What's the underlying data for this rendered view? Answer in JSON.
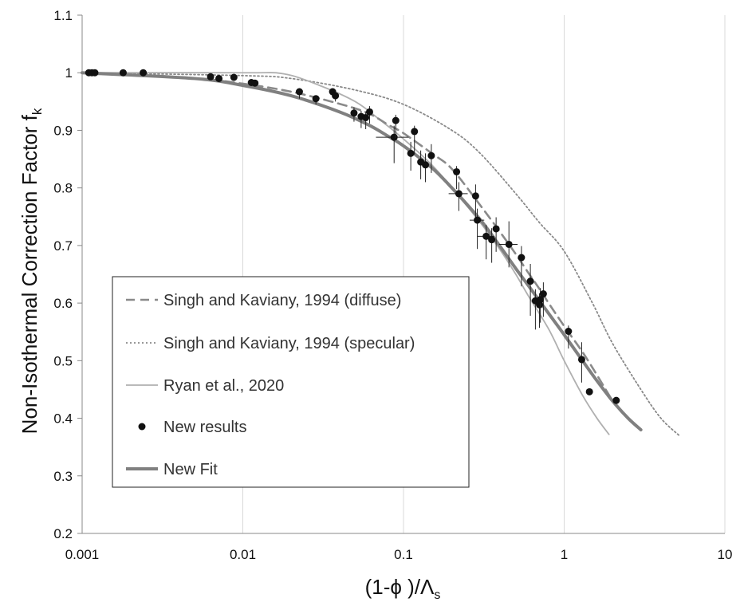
{
  "chart_data": {
    "type": "scatter",
    "x_scale": "log",
    "xlim": [
      0.001,
      10
    ],
    "ylim": [
      0.2,
      1.1
    ],
    "x_ticks": [
      "0.001",
      "0.01",
      "0.1",
      "1",
      "10"
    ],
    "y_ticks": [
      "0.2",
      "0.3",
      "0.4",
      "0.5",
      "0.6",
      "0.7",
      "0.8",
      "0.9",
      "1",
      "1.1"
    ],
    "xlabel": "(1-ϕ )/Λs",
    "ylabel": "Non-Isothermal Correction Factor fk",
    "grid": "vertical",
    "legend_position": "lower-left",
    "series": [
      {
        "name": "Singh and Kaviany, 1994 (diffuse)",
        "style": "dashed",
        "color": "#8a8a8a",
        "x": [
          0.001,
          0.005,
          0.01,
          0.02,
          0.04,
          0.06,
          0.08,
          0.1,
          0.15,
          0.2,
          0.3,
          0.4,
          0.5,
          0.6,
          0.7,
          0.8,
          1.0,
          1.3,
          1.6,
          2.0
        ],
        "y": [
          1.0,
          0.99,
          0.981,
          0.967,
          0.946,
          0.93,
          0.91,
          0.895,
          0.86,
          0.833,
          0.77,
          0.723,
          0.685,
          0.652,
          0.625,
          0.6,
          0.56,
          0.515,
          0.475,
          0.43
        ]
      },
      {
        "name": "Singh and Kaviany, 1994 (specular)",
        "style": "dotted",
        "color": "#8a8a8a",
        "x": [
          0.001,
          0.01,
          0.02,
          0.05,
          0.1,
          0.2,
          0.3,
          0.5,
          0.7,
          1.0,
          1.5,
          2.0,
          3.0,
          4.0,
          5.2
        ],
        "y": [
          1.0,
          0.995,
          0.99,
          0.97,
          0.945,
          0.9,
          0.86,
          0.79,
          0.74,
          0.69,
          0.6,
          0.53,
          0.45,
          0.4,
          0.37
        ]
      },
      {
        "name": "Ryan et al., 2020",
        "style": "solid-thin",
        "color": "#b0b0b0",
        "x": [
          0.001,
          0.01,
          0.018,
          0.03,
          0.05,
          0.07,
          0.1,
          0.15,
          0.2,
          0.3,
          0.4,
          0.5,
          0.6,
          0.8,
          1.0,
          1.3,
          1.6,
          1.9
        ],
        "y": [
          1.0,
          1.0,
          0.998,
          0.978,
          0.95,
          0.92,
          0.885,
          0.84,
          0.8,
          0.74,
          0.692,
          0.65,
          0.612,
          0.555,
          0.5,
          0.44,
          0.4,
          0.372
        ]
      },
      {
        "name": "New results",
        "style": "markers",
        "color": "#111111",
        "x": [
          0.0011,
          0.00115,
          0.0012,
          0.0018,
          0.0024,
          0.0063,
          0.0071,
          0.0088,
          0.0113,
          0.0119,
          0.0225,
          0.0285,
          0.0362,
          0.0377,
          0.0492,
          0.0545,
          0.0582,
          0.0615,
          0.0874,
          0.0895,
          0.111,
          0.117,
          0.128,
          0.137,
          0.149,
          0.214,
          0.221,
          0.281,
          0.288,
          0.327,
          0.354,
          0.377,
          0.453,
          0.542,
          0.616,
          0.662,
          0.702,
          0.711,
          0.742,
          1.063,
          1.285,
          1.436,
          2.108
        ],
        "y": [
          1.0,
          1.0,
          1.0,
          1.0,
          1.0,
          0.993,
          0.99,
          0.992,
          0.983,
          0.982,
          0.967,
          0.955,
          0.967,
          0.96,
          0.93,
          0.924,
          0.922,
          0.932,
          0.888,
          0.917,
          0.86,
          0.898,
          0.845,
          0.84,
          0.856,
          0.828,
          0.79,
          0.786,
          0.744,
          0.716,
          0.71,
          0.729,
          0.702,
          0.679,
          0.638,
          0.604,
          0.597,
          0.606,
          0.616,
          0.551,
          0.502,
          0.446,
          0.431
        ],
        "yerr_down": [
          0,
          0,
          0,
          0,
          0,
          0,
          0,
          0,
          0,
          0,
          0.012,
          0.01,
          0.01,
          0.01,
          0.015,
          0.02,
          0.02,
          0.02,
          0.045,
          0.03,
          0.03,
          0.04,
          0.03,
          0.03,
          0.03,
          0.03,
          0.03,
          0.04,
          0.05,
          0.04,
          0.04,
          0.04,
          0.04,
          0.05,
          0.06,
          0.05,
          0.04,
          0.04,
          0.04,
          0.03,
          0.04,
          0,
          0
        ],
        "yerr_up": [
          0,
          0,
          0,
          0,
          0,
          0,
          0,
          0,
          0,
          0,
          0.005,
          0.005,
          0.005,
          0.005,
          0.01,
          0.01,
          0.01,
          0.01,
          0.02,
          0.01,
          0.02,
          0.01,
          0.02,
          0.02,
          0.02,
          0.01,
          0.02,
          0.02,
          0.02,
          0.02,
          0.02,
          0.02,
          0.04,
          0.02,
          0.03,
          0.02,
          0.02,
          0.02,
          0.02,
          0.01,
          0.03,
          0,
          0
        ],
        "xerr": [
          0,
          0,
          0,
          0,
          0,
          0,
          0,
          0,
          0,
          0,
          0,
          0,
          0,
          0,
          0,
          0,
          0,
          0,
          0.02,
          0,
          0,
          0,
          0,
          0,
          0,
          0,
          0.03,
          0,
          0.03,
          0.04,
          0,
          0,
          0.06,
          0,
          0,
          0,
          0,
          0,
          0,
          0,
          0,
          0,
          0
        ]
      },
      {
        "name": "New Fit",
        "style": "solid-thick",
        "color": "#808080",
        "x": [
          0.001,
          0.005,
          0.01,
          0.02,
          0.04,
          0.06,
          0.08,
          0.1,
          0.15,
          0.2,
          0.3,
          0.4,
          0.5,
          0.6,
          0.8,
          1.0,
          1.3,
          1.6,
          2.0,
          2.5,
          3.0
        ],
        "y": [
          1.0,
          0.99,
          0.978,
          0.96,
          0.932,
          0.91,
          0.89,
          0.873,
          0.835,
          0.8,
          0.745,
          0.698,
          0.66,
          0.63,
          0.582,
          0.545,
          0.5,
          0.465,
          0.43,
          0.4,
          0.38
        ]
      }
    ]
  }
}
